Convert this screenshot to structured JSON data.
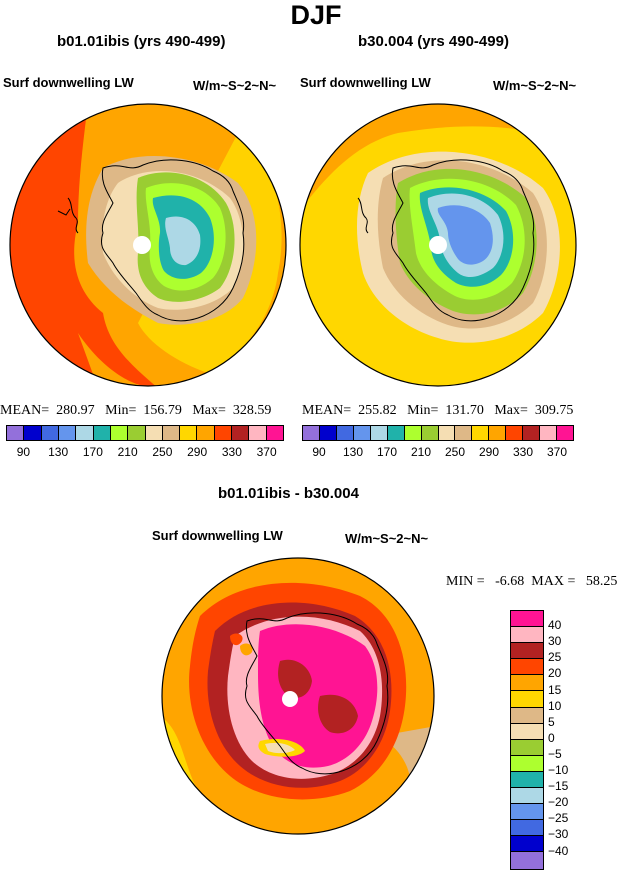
{
  "title": "DJF",
  "panels": [
    {
      "name": "b01.01ibis (yrs 490-499)",
      "variable": "Surf downwelling LW",
      "units": "W/m~S~2~N~",
      "stats": "MEAN=  280.97   Min=  156.79   Max=  328.59",
      "colorbar": {
        "colors": [
          "#9370db",
          "#0000cd",
          "#4169e1",
          "#6495ed",
          "#add8e6",
          "#20b2aa",
          "#adff2f",
          "#9acd32",
          "#f5deb3",
          "#deb887",
          "#ffd700",
          "#ffa500",
          "#ff4500",
          "#b22222",
          "#ffb6c1",
          "#ff1493"
        ],
        "ticks": [
          "90",
          "130",
          "170",
          "210",
          "250",
          "290",
          "330",
          "370"
        ]
      }
    },
    {
      "name": "b30.004 (yrs 490-499)",
      "variable": "Surf downwelling LW",
      "units": "W/m~S~2~N~",
      "stats": "MEAN=  255.82   Min=  131.70   Max=  309.75",
      "colorbar": {
        "colors": [
          "#9370db",
          "#0000cd",
          "#4169e1",
          "#6495ed",
          "#add8e6",
          "#20b2aa",
          "#adff2f",
          "#9acd32",
          "#f5deb3",
          "#deb887",
          "#ffd700",
          "#ffa500",
          "#ff4500",
          "#b22222",
          "#ffb6c1",
          "#ff1493"
        ],
        "ticks": [
          "90",
          "130",
          "170",
          "210",
          "250",
          "290",
          "330",
          "370"
        ]
      }
    }
  ],
  "difference": {
    "name": "b01.01ibis - b30.004",
    "variable": "Surf downwelling LW",
    "units": "W/m~S~2~N~",
    "stats": "MIN =   -6.68  MAX =   58.25",
    "colorbar": {
      "colors": [
        "#ff1493",
        "#ffb6c1",
        "#b22222",
        "#ff4500",
        "#ffa500",
        "#ffd700",
        "#deb887",
        "#f5deb3",
        "#9acd32",
        "#adff2f",
        "#20b2aa",
        "#add8e6",
        "#6495ed",
        "#4169e1",
        "#0000cd",
        "#9370db"
      ],
      "labels": [
        "40",
        "30",
        "25",
        "20",
        "15",
        "10",
        "5",
        "0",
        "−5",
        "−10",
        "−15",
        "−20",
        "−25",
        "−30",
        "−40"
      ]
    }
  }
}
